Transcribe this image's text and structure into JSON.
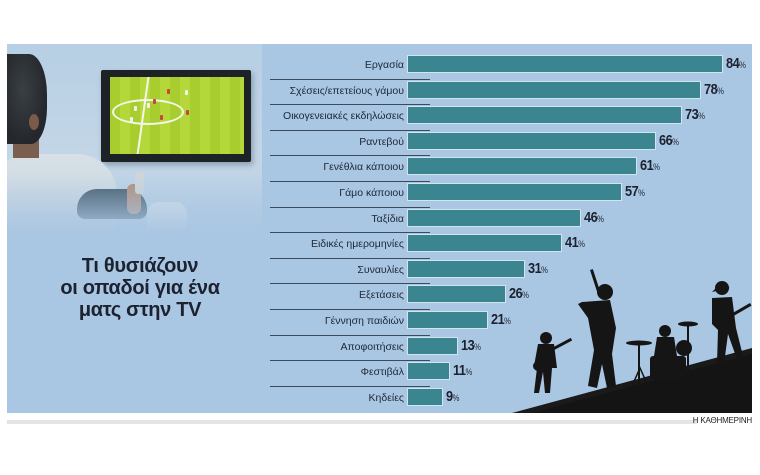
{
  "title": "Τι θυσιάζουν οι οπαδοί για ένα ματς στην TV",
  "title_lines": [
    "Τι θυσιάζουν",
    "οι οπαδοί για ένα",
    "ματς στην TV"
  ],
  "credit": "Η ΚΑΘΗΜΕΡΙΝΗ",
  "colors": {
    "background": "#a9c6e2",
    "bar": "#3a8590",
    "text": "#1c2230"
  },
  "illustrations": {
    "top_left": "man-watching-football-on-tv",
    "bottom_right": "rock-band-silhouette"
  },
  "chart_data": {
    "type": "bar",
    "orientation": "horizontal",
    "title": "Τι θυσιάζουν οι οπαδοί για ένα ματς στην TV",
    "categories": [
      "Εργασία",
      "Σχέσεις/επετείους γάμου",
      "Οικογενειακές εκδηλώσεις",
      "Ραντεβού",
      "Γενέθλια κάποιου",
      "Γάμο κάποιου",
      "Ταξίδια",
      "Ειδικές ημερομηνίες",
      "Συναυλίες",
      "Εξετάσεις",
      "Γέννηση παιδιών",
      "Αποφοιτήσεις",
      "Φεστιβάλ",
      "Κηδείες"
    ],
    "values": [
      84,
      78,
      73,
      66,
      61,
      57,
      46,
      41,
      31,
      26,
      21,
      13,
      11,
      9
    ],
    "value_labels": [
      "84",
      "78",
      "73",
      "66",
      "61",
      "57",
      "46",
      "41",
      "31",
      "26",
      "21",
      "13",
      "11",
      "9"
    ],
    "unit": "%",
    "xlabel": "",
    "ylabel": "",
    "xlim": [
      0,
      100
    ],
    "grid": false,
    "legend": null
  }
}
